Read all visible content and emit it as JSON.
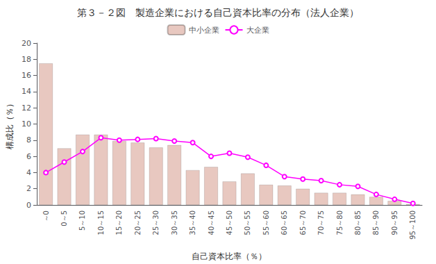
{
  "chart_data": {
    "type": "bar",
    "title": "第３－２図　製造企業における自己資本比率の分布（法人企業）",
    "xlabel": "自己資本比率（％）",
    "ylabel": "構成比（％）",
    "categories": [
      "～0",
      "0～5",
      "5～10",
      "10～15",
      "15～20",
      "20～25",
      "25～30",
      "30～35",
      "35～40",
      "40～45",
      "45～50",
      "50～55",
      "55～60",
      "60～65",
      "65～70",
      "70～75",
      "75～80",
      "80～85",
      "85～90",
      "90～95",
      "95～100"
    ],
    "series": [
      {
        "name": "中小企業",
        "type": "bar",
        "color": "#e8c8c0",
        "values": [
          17.5,
          7.0,
          8.7,
          8.7,
          7.9,
          7.7,
          7.1,
          7.4,
          4.3,
          4.7,
          2.9,
          3.9,
          2.5,
          2.4,
          2.0,
          1.5,
          1.5,
          1.3,
          1.0,
          0.5,
          0.1
        ]
      },
      {
        "name": "大企業",
        "type": "line",
        "color": "#ff00ff",
        "marker": "circle",
        "values": [
          4.0,
          5.3,
          6.6,
          8.3,
          8.0,
          8.1,
          8.2,
          7.9,
          7.7,
          6.0,
          6.4,
          5.9,
          4.9,
          3.5,
          3.2,
          3.0,
          2.5,
          2.3,
          1.3,
          0.7,
          0.2
        ]
      }
    ],
    "ylim": [
      0,
      20
    ],
    "yticks": [
      0,
      2,
      4,
      6,
      8,
      10,
      12,
      14,
      16,
      18,
      20
    ],
    "grid": false,
    "legend": "top"
  }
}
